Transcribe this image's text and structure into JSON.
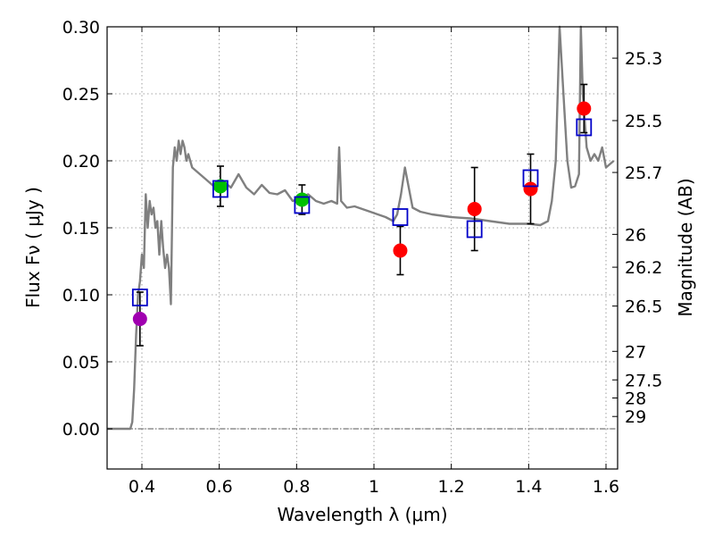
{
  "chart_data": {
    "type": "scatter",
    "xlabel": "Wavelength  λ (μm)",
    "ylabel": "Flux  Fν  ( μJy )",
    "ylabel_right": "Magnitude (AB)",
    "xlim": [
      0.31,
      1.63
    ],
    "ylim": [
      -0.03,
      0.3
    ],
    "grid": true,
    "x_ticks": [
      {
        "value": 0.4,
        "label": "0.4"
      },
      {
        "value": 0.6,
        "label": "0.6"
      },
      {
        "value": 0.8,
        "label": "0.8"
      },
      {
        "value": 1.0,
        "label": "1"
      },
      {
        "value": 1.2,
        "label": "1.2"
      },
      {
        "value": 1.4,
        "label": "1.4"
      },
      {
        "value": 1.6,
        "label": "1.6"
      }
    ],
    "y_ticks": [
      {
        "value": 0.0,
        "label": "0.00"
      },
      {
        "value": 0.05,
        "label": "0.05"
      },
      {
        "value": 0.1,
        "label": "0.10"
      },
      {
        "value": 0.15,
        "label": "0.15"
      },
      {
        "value": 0.2,
        "label": "0.20"
      },
      {
        "value": 0.25,
        "label": "0.25"
      },
      {
        "value": 0.3,
        "label": "0.30"
      }
    ],
    "right_ticks": [
      {
        "flux": 0.2766,
        "label": "25.3"
      },
      {
        "flux": 0.23,
        "label": "25.5"
      },
      {
        "flux": 0.1913,
        "label": "25.7"
      },
      {
        "flux": 0.1451,
        "label": "26"
      },
      {
        "flux": 0.1206,
        "label": "26.2"
      },
      {
        "flux": 0.0916,
        "label": "26.5"
      },
      {
        "flux": 0.0578,
        "label": "27"
      },
      {
        "flux": 0.0365,
        "label": "27.5"
      },
      {
        "flux": 0.023,
        "label": "28"
      },
      {
        "flux": 0.0092,
        "label": "29"
      }
    ],
    "model_spectrum": {
      "color": "#808080",
      "x": [
        0.31,
        0.33,
        0.35,
        0.36,
        0.37,
        0.375,
        0.38,
        0.385,
        0.39,
        0.395,
        0.4,
        0.405,
        0.41,
        0.415,
        0.42,
        0.425,
        0.43,
        0.435,
        0.44,
        0.445,
        0.45,
        0.455,
        0.46,
        0.465,
        0.47,
        0.475,
        0.48,
        0.485,
        0.49,
        0.495,
        0.5,
        0.505,
        0.51,
        0.515,
        0.52,
        0.53,
        0.55,
        0.57,
        0.59,
        0.61,
        0.63,
        0.65,
        0.67,
        0.69,
        0.71,
        0.73,
        0.75,
        0.77,
        0.79,
        0.81,
        0.83,
        0.85,
        0.87,
        0.89,
        0.905,
        0.91,
        0.915,
        0.93,
        0.95,
        0.97,
        0.99,
        1.01,
        1.03,
        1.05,
        1.06,
        1.07,
        1.08,
        1.09,
        1.1,
        1.12,
        1.15,
        1.2,
        1.25,
        1.3,
        1.35,
        1.4,
        1.43,
        1.45,
        1.46,
        1.47,
        1.48,
        1.49,
        1.5,
        1.51,
        1.52,
        1.53,
        1.535,
        1.54,
        1.55,
        1.56,
        1.57,
        1.58,
        1.59,
        1.6,
        1.62
      ],
      "y": [
        0.0,
        0.0,
        0.0,
        0.0,
        0.0,
        0.005,
        0.03,
        0.07,
        0.1,
        0.11,
        0.13,
        0.12,
        0.175,
        0.15,
        0.17,
        0.16,
        0.165,
        0.15,
        0.155,
        0.13,
        0.155,
        0.135,
        0.12,
        0.13,
        0.12,
        0.093,
        0.195,
        0.21,
        0.2,
        0.215,
        0.205,
        0.215,
        0.21,
        0.2,
        0.205,
        0.195,
        0.19,
        0.185,
        0.18,
        0.185,
        0.18,
        0.19,
        0.18,
        0.175,
        0.182,
        0.176,
        0.175,
        0.178,
        0.17,
        0.172,
        0.175,
        0.17,
        0.168,
        0.17,
        0.168,
        0.21,
        0.17,
        0.165,
        0.166,
        0.164,
        0.162,
        0.16,
        0.158,
        0.155,
        0.16,
        0.175,
        0.195,
        0.18,
        0.165,
        0.162,
        0.16,
        0.158,
        0.157,
        0.155,
        0.153,
        0.153,
        0.152,
        0.155,
        0.17,
        0.2,
        0.3,
        0.25,
        0.2,
        0.18,
        0.181,
        0.19,
        0.3,
        0.25,
        0.21,
        0.2,
        0.205,
        0.2,
        0.21,
        0.195,
        0.2
      ]
    },
    "series": [
      {
        "marker": "circle",
        "color": "#a000b0",
        "points": [
          {
            "x": 0.395,
            "y": 0.082,
            "err": 0.02
          }
        ]
      },
      {
        "marker": "circle",
        "color": "#00c000",
        "points": [
          {
            "x": 0.603,
            "y": 0.181,
            "err": 0.015
          },
          {
            "x": 0.814,
            "y": 0.171,
            "err": 0.011
          }
        ]
      },
      {
        "marker": "circle",
        "color": "#ff0000",
        "points": [
          {
            "x": 1.068,
            "y": 0.133,
            "err": 0.018
          },
          {
            "x": 1.26,
            "y": 0.164,
            "err": 0.031
          },
          {
            "x": 1.405,
            "y": 0.179,
            "err": 0.026
          },
          {
            "x": 1.543,
            "y": 0.239,
            "err": 0.018
          }
        ]
      },
      {
        "marker": "square",
        "color": "#0000c8",
        "points": [
          {
            "x": 0.395,
            "y": 0.098
          },
          {
            "x": 0.603,
            "y": 0.179
          },
          {
            "x": 0.814,
            "y": 0.167
          },
          {
            "x": 1.068,
            "y": 0.158
          },
          {
            "x": 1.26,
            "y": 0.149
          },
          {
            "x": 1.405,
            "y": 0.187
          },
          {
            "x": 1.543,
            "y": 0.225
          }
        ]
      }
    ]
  }
}
